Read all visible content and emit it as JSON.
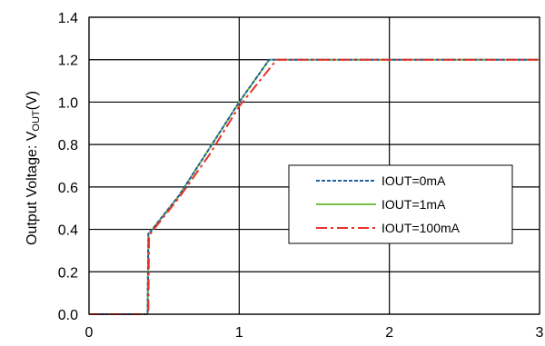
{
  "chart_data": {
    "type": "line",
    "title": "",
    "xlabel": "",
    "ylabel": {
      "main": "Output Voltage: V",
      "subscript": "OUT",
      "suffix": "(V)"
    },
    "xlim": [
      0,
      3
    ],
    "ylim": [
      0,
      1.4
    ],
    "x_ticks": [
      "0",
      "1",
      "2",
      "3"
    ],
    "y_ticks": [
      "0.0",
      "0.2",
      "0.4",
      "0.6",
      "0.8",
      "1.0",
      "1.2",
      "1.4"
    ],
    "grid": true,
    "legend_position": "center-right",
    "series": [
      {
        "name": "IOUT=0mA",
        "color": "#1f5fa6",
        "dash": "dotted",
        "x": [
          0,
          0.39,
          0.395,
          0.41,
          0.6,
          0.8,
          1.0,
          1.2,
          1.3,
          3.0
        ],
        "y": [
          0,
          0,
          0.38,
          0.39,
          0.56,
          0.78,
          1.0,
          1.2,
          1.2,
          1.2
        ]
      },
      {
        "name": "IOUT=1mA",
        "color": "#77c043",
        "dash": "solid",
        "x": [
          0,
          0.39,
          0.395,
          0.41,
          0.6,
          0.8,
          1.0,
          1.2,
          1.3,
          3.0
        ],
        "y": [
          0,
          0,
          0.38,
          0.39,
          0.56,
          0.78,
          1.0,
          1.2,
          1.2,
          1.2
        ]
      },
      {
        "name": "IOUT=100mA",
        "color": "#e8312a",
        "dash": "dashdot",
        "x": [
          0,
          0.395,
          0.4,
          0.42,
          0.6,
          0.8,
          1.0,
          1.25,
          1.3,
          3.0
        ],
        "y": [
          0,
          0,
          0.37,
          0.39,
          0.55,
          0.75,
          0.98,
          1.2,
          1.2,
          1.2
        ]
      }
    ]
  }
}
